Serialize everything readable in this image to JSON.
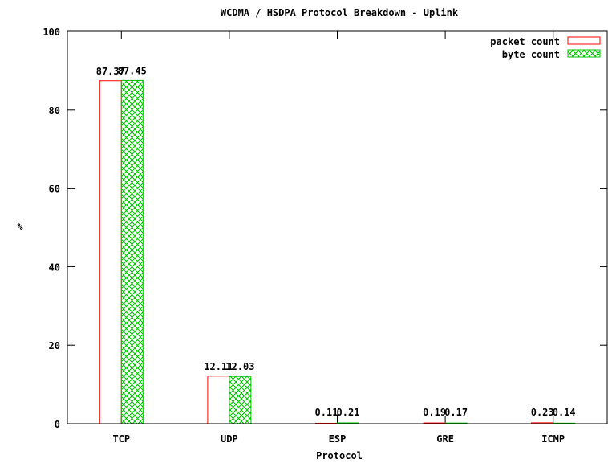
{
  "chart_data": {
    "type": "bar",
    "title": "WCDMA / HSDPA Protocol Breakdown - Uplink",
    "xlabel": "Protocol",
    "ylabel": "%",
    "ylim": [
      0,
      100
    ],
    "yticks": [
      0,
      20,
      40,
      60,
      80,
      100
    ],
    "categories": [
      "TCP",
      "UDP",
      "ESP",
      "GRE",
      "ICMP"
    ],
    "series": [
      {
        "name": "packet count",
        "color": "#ff0000",
        "fill": "none",
        "values": [
          87.37,
          12.11,
          0.11,
          0.19,
          0.23
        ],
        "labels": [
          "87.37",
          "12.11",
          "0.11",
          "0.19",
          "0.23"
        ]
      },
      {
        "name": "byte count",
        "color": "#00c000",
        "fill": "crosshatch",
        "values": [
          87.45,
          12.03,
          0.21,
          0.17,
          0.14
        ],
        "labels": [
          "87.45",
          "12.03",
          "0.21",
          "0.17",
          "0.14"
        ]
      }
    ],
    "grid": false,
    "legend_position": "top-right"
  }
}
